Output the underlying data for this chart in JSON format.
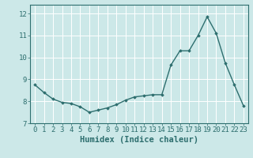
{
  "x": [
    0,
    1,
    2,
    3,
    4,
    5,
    6,
    7,
    8,
    9,
    10,
    11,
    12,
    13,
    14,
    15,
    16,
    17,
    18,
    19,
    20,
    21,
    22,
    23
  ],
  "y": [
    8.75,
    8.4,
    8.1,
    7.95,
    7.9,
    7.75,
    7.5,
    7.6,
    7.7,
    7.85,
    8.05,
    8.2,
    8.25,
    8.3,
    8.3,
    9.65,
    10.3,
    10.3,
    11.0,
    11.85,
    11.1,
    9.75,
    8.75,
    7.8
  ],
  "line_color": "#2d6e6e",
  "marker": "D",
  "marker_size": 1.8,
  "line_width": 1.0,
  "bg_color": "#cce8e8",
  "grid_color": "#ffffff",
  "xlabel": "Humidex (Indice chaleur)",
  "xlabel_fontsize": 7.5,
  "xlim": [
    -0.5,
    23.5
  ],
  "ylim": [
    7.0,
    12.4
  ],
  "yticks": [
    7,
    8,
    9,
    10,
    11,
    12
  ],
  "xticks": [
    0,
    1,
    2,
    3,
    4,
    5,
    6,
    7,
    8,
    9,
    10,
    11,
    12,
    13,
    14,
    15,
    16,
    17,
    18,
    19,
    20,
    21,
    22,
    23
  ],
  "tick_fontsize": 6.5,
  "axis_color": "#2d6e6e",
  "spine_color": "#2d6e6e"
}
